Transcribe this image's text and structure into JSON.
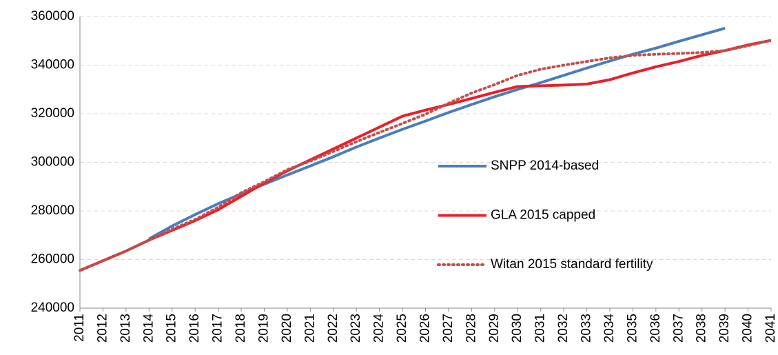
{
  "chart_data": {
    "type": "line",
    "categories": [
      "2011",
      "2012",
      "2013",
      "2014",
      "2015",
      "2016",
      "2017",
      "2018",
      "2019",
      "2020",
      "2021",
      "2022",
      "2023",
      "2024",
      "2025",
      "2026",
      "2027",
      "2028",
      "2029",
      "2030",
      "2031",
      "2032",
      "2033",
      "2034",
      "2035",
      "2036",
      "2037",
      "2038",
      "2039",
      "2040",
      "2041"
    ],
    "series": [
      {
        "name": "SNPP 2014-based",
        "color": "#4a7ebb",
        "style": "solid",
        "values": [
          null,
          null,
          null,
          268500,
          273800,
          278500,
          283000,
          287000,
          291000,
          294800,
          298500,
          302300,
          306300,
          310000,
          313600,
          317000,
          320500,
          323800,
          327000,
          330000,
          332800,
          335800,
          338800,
          341700,
          344500,
          347000,
          349800,
          352500,
          355200,
          null,
          null
        ]
      },
      {
        "name": "GLA 2015 capped",
        "color": "#e8202a",
        "style": "solid",
        "values": [
          255500,
          259500,
          263500,
          268000,
          272000,
          276000,
          280500,
          286000,
          291500,
          296500,
          301000,
          305500,
          310000,
          314500,
          319000,
          321500,
          323800,
          326300,
          328800,
          331200,
          331500,
          331800,
          332200,
          334000,
          336800,
          339300,
          341500,
          344000,
          346000,
          348300,
          350200
        ]
      },
      {
        "name": "Witan 2015 standard fertility",
        "color": "#c0504d",
        "style": "dotted",
        "values": [
          255500,
          259500,
          263500,
          268000,
          272500,
          276500,
          281500,
          287500,
          292000,
          297000,
          300500,
          304500,
          308500,
          312300,
          316000,
          319800,
          324300,
          328500,
          332000,
          335800,
          338300,
          340000,
          341500,
          343000,
          344000,
          344500,
          344800,
          345200,
          346000,
          348000,
          350200
        ]
      }
    ],
    "ylim": [
      240000,
      360000
    ],
    "yticks": [
      240000,
      260000,
      280000,
      300000,
      320000,
      340000,
      360000
    ],
    "grid": true,
    "legend": "right"
  }
}
